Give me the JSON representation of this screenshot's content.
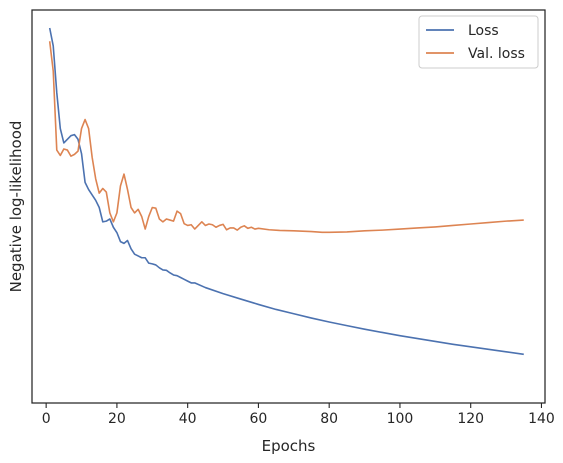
{
  "chart_data": {
    "type": "line",
    "xlabel": "Epochs",
    "ylabel": "Negative log-likelihood",
    "xlim": [
      -4,
      141
    ],
    "ylim": [
      0,
      100
    ],
    "x_ticks": [
      0,
      20,
      40,
      60,
      80,
      100,
      120,
      140
    ],
    "y_ticks_shown": false,
    "grid": false,
    "legend_position": "top-right",
    "series": [
      {
        "name": "Loss",
        "color": "#4c72b0",
        "points": [
          [
            1,
            100
          ],
          [
            2,
            95
          ],
          [
            3,
            82
          ],
          [
            4,
            72
          ],
          [
            5,
            68
          ],
          [
            6,
            69
          ],
          [
            7,
            70
          ],
          [
            8,
            70.3
          ],
          [
            9,
            69
          ],
          [
            10,
            65
          ],
          [
            11,
            57
          ],
          [
            12,
            55
          ],
          [
            13,
            53.5
          ],
          [
            14,
            52
          ],
          [
            15,
            50
          ],
          [
            16,
            46
          ],
          [
            17,
            46.2
          ],
          [
            18,
            46.8
          ],
          [
            19,
            44.5
          ],
          [
            20,
            43
          ],
          [
            21,
            40.5
          ],
          [
            22,
            40
          ],
          [
            23,
            40.8
          ],
          [
            24,
            38.5
          ],
          [
            25,
            37
          ],
          [
            26,
            36.5
          ],
          [
            27,
            36
          ],
          [
            28,
            36
          ],
          [
            29,
            34.5
          ],
          [
            30,
            34.3
          ],
          [
            31,
            34
          ],
          [
            32,
            33.2
          ],
          [
            33,
            32.6
          ],
          [
            34,
            32.5
          ],
          [
            35,
            31.8
          ],
          [
            36,
            31.2
          ],
          [
            37,
            31
          ],
          [
            38,
            30.5
          ],
          [
            39,
            30
          ],
          [
            40,
            29.5
          ],
          [
            41,
            29
          ],
          [
            42,
            29
          ],
          [
            45,
            27.7
          ],
          [
            50,
            26
          ],
          [
            55,
            24.5
          ],
          [
            60,
            23
          ],
          [
            65,
            21.6
          ],
          [
            70,
            20.4
          ],
          [
            75,
            19.2
          ],
          [
            80,
            18.1
          ],
          [
            85,
            17.1
          ],
          [
            90,
            16.1
          ],
          [
            95,
            15.2
          ],
          [
            100,
            14.3
          ],
          [
            105,
            13.5
          ],
          [
            110,
            12.7
          ],
          [
            115,
            11.9
          ],
          [
            120,
            11.2
          ],
          [
            125,
            10.5
          ],
          [
            130,
            9.8
          ],
          [
            135,
            9.1
          ]
        ]
      },
      {
        "name": "Val. loss",
        "color": "#dd8452",
        "points": [
          [
            1,
            96.3
          ],
          [
            2,
            88
          ],
          [
            3,
            66
          ],
          [
            4,
            64.5
          ],
          [
            5,
            66.3
          ],
          [
            6,
            66
          ],
          [
            7,
            64.3
          ],
          [
            8,
            64.8
          ],
          [
            9,
            65.7
          ],
          [
            10,
            72
          ],
          [
            11,
            74.5
          ],
          [
            12,
            72
          ],
          [
            13,
            64
          ],
          [
            14,
            58
          ],
          [
            15,
            54
          ],
          [
            16,
            55.3
          ],
          [
            17,
            54.3
          ],
          [
            18,
            48.5
          ],
          [
            19,
            46
          ],
          [
            20,
            48.5
          ],
          [
            21,
            56
          ],
          [
            22,
            59.3
          ],
          [
            23,
            55
          ],
          [
            24,
            50
          ],
          [
            25,
            48.5
          ],
          [
            26,
            49.5
          ],
          [
            27,
            47.5
          ],
          [
            28,
            44
          ],
          [
            29,
            47.5
          ],
          [
            30,
            50
          ],
          [
            31,
            49.8
          ],
          [
            32,
            46.8
          ],
          [
            33,
            46
          ],
          [
            34,
            46.8
          ],
          [
            35,
            46.5
          ],
          [
            36,
            46.2
          ],
          [
            37,
            49
          ],
          [
            38,
            48.3
          ],
          [
            39,
            45.5
          ],
          [
            40,
            45
          ],
          [
            41,
            45.2
          ],
          [
            42,
            44
          ],
          [
            43,
            45
          ],
          [
            44,
            46
          ],
          [
            45,
            45
          ],
          [
            46,
            45.4
          ],
          [
            47,
            45.2
          ],
          [
            48,
            44.5
          ],
          [
            49,
            45
          ],
          [
            50,
            45.3
          ],
          [
            51,
            43.8
          ],
          [
            52,
            44.3
          ],
          [
            53,
            44.3
          ],
          [
            54,
            43.7
          ],
          [
            55,
            44.5
          ],
          [
            56,
            44.9
          ],
          [
            57,
            44.2
          ],
          [
            58,
            44.5
          ],
          [
            59,
            44
          ],
          [
            60,
            44.2
          ],
          [
            63,
            43.8
          ],
          [
            66,
            43.6
          ],
          [
            70,
            43.5
          ],
          [
            75,
            43.3
          ],
          [
            78,
            43.1
          ],
          [
            80,
            43.1
          ],
          [
            85,
            43.2
          ],
          [
            90,
            43.5
          ],
          [
            95,
            43.7
          ],
          [
            100,
            44
          ],
          [
            105,
            44.3
          ],
          [
            110,
            44.6
          ],
          [
            115,
            45
          ],
          [
            120,
            45.4
          ],
          [
            125,
            45.8
          ],
          [
            130,
            46.2
          ],
          [
            135,
            46.5
          ]
        ]
      }
    ]
  }
}
